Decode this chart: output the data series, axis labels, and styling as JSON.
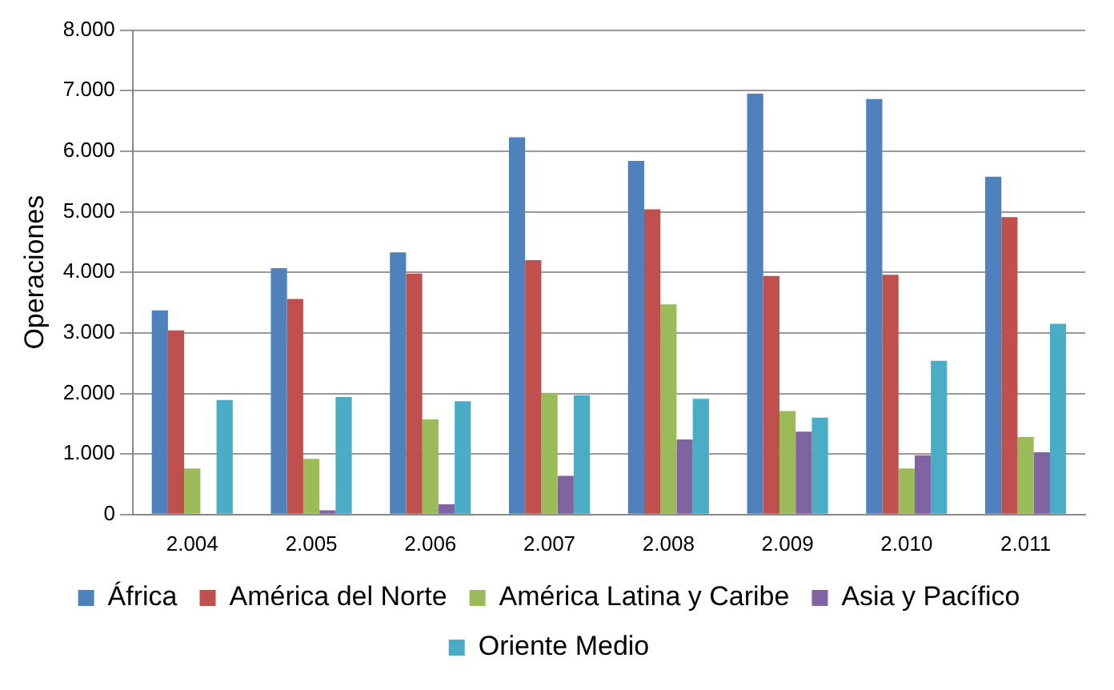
{
  "chart_data": {
    "type": "bar",
    "ylabel": "Operaciones",
    "categories": [
      "2.004",
      "2.005",
      "2.006",
      "2.007",
      "2.008",
      "2.009",
      "2.010",
      "2.011"
    ],
    "series": [
      {
        "name": "África",
        "color": "#4f81bd",
        "values": [
          3370,
          4070,
          4330,
          6230,
          5840,
          6950,
          6860,
          5580
        ]
      },
      {
        "name": "América del Norte",
        "color": "#c0504d",
        "values": [
          3040,
          3560,
          3980,
          4200,
          5040,
          3940,
          3960,
          4910
        ]
      },
      {
        "name": "América Latina y Caribe",
        "color": "#9bbb59",
        "values": [
          760,
          920,
          1570,
          2010,
          3470,
          1710,
          760,
          1280
        ]
      },
      {
        "name": "Asia y Pacífico",
        "color": "#8064a2",
        "values": [
          null,
          70,
          170,
          640,
          1240,
          1370,
          980,
          1030
        ]
      },
      {
        "name": "Oriente Medio",
        "color": "#4bacc6",
        "values": [
          1890,
          1940,
          1870,
          1970,
          1910,
          1600,
          2540,
          3150
        ]
      }
    ],
    "ylim": [
      0,
      8000
    ],
    "yticks": [
      {
        "value": 0,
        "label": "0"
      },
      {
        "value": 1000,
        "label": "1.000"
      },
      {
        "value": 2000,
        "label": "2.000"
      },
      {
        "value": 3000,
        "label": "3.000"
      },
      {
        "value": 4000,
        "label": "4.000"
      },
      {
        "value": 5000,
        "label": "5.000"
      },
      {
        "value": 6000,
        "label": "6.000"
      },
      {
        "value": 7000,
        "label": "7.000"
      },
      {
        "value": 8000,
        "label": "8.000"
      }
    ],
    "grid": "y",
    "legend": "bottom"
  }
}
